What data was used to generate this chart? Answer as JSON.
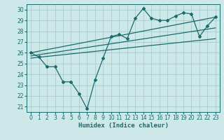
{
  "title": "",
  "xlabel": "Humidex (Indice chaleur)",
  "ylabel": "",
  "background_color": "#cce8e8",
  "grid_color": "#aacccc",
  "line_color": "#1a6b6b",
  "xlim": [
    -0.5,
    23.5
  ],
  "ylim": [
    20.5,
    30.5
  ],
  "xticks": [
    0,
    1,
    2,
    3,
    4,
    5,
    6,
    7,
    8,
    9,
    10,
    11,
    12,
    13,
    14,
    15,
    16,
    17,
    18,
    19,
    20,
    21,
    22,
    23
  ],
  "yticks": [
    21,
    22,
    23,
    24,
    25,
    26,
    27,
    28,
    29,
    30
  ],
  "measured_x": [
    0,
    1,
    2,
    3,
    4,
    5,
    6,
    7,
    8,
    9,
    10,
    11,
    12,
    13,
    14,
    15,
    16,
    17,
    18,
    19,
    20,
    21,
    22,
    23
  ],
  "measured_y": [
    26.0,
    25.6,
    24.7,
    24.7,
    23.3,
    23.3,
    22.2,
    20.8,
    23.5,
    25.5,
    27.5,
    27.7,
    27.3,
    29.2,
    30.1,
    29.2,
    29.0,
    29.0,
    29.4,
    29.7,
    29.6,
    27.5,
    28.5,
    29.3
  ],
  "trend1_x": [
    0,
    23
  ],
  "trend1_y": [
    26.0,
    29.3
  ],
  "trend2_x": [
    0,
    23
  ],
  "trend2_y": [
    25.7,
    28.3
  ],
  "trend3_x": [
    0,
    23
  ],
  "trend3_y": [
    25.5,
    27.3
  ]
}
